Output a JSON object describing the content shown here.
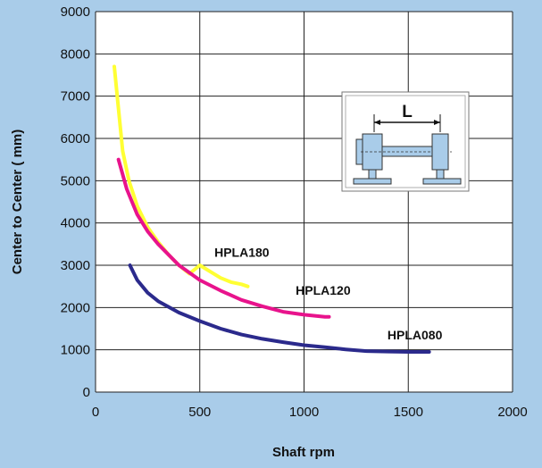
{
  "chart_data": {
    "type": "line",
    "title": "",
    "xlabel": "Shaft rpm",
    "ylabel": "Center to Center ( mm)",
    "xlim": [
      0,
      2000
    ],
    "ylim": [
      0,
      9000
    ],
    "xticks": [
      0,
      500,
      1000,
      1500,
      2000
    ],
    "yticks": [
      0,
      1000,
      2000,
      3000,
      4000,
      5000,
      6000,
      7000,
      8000,
      9000
    ],
    "grid": true,
    "series": [
      {
        "name": "HPLA180",
        "color": "#ffff33",
        "x": [
          90,
          110,
          130,
          160,
          200,
          250,
          300,
          350,
          400,
          450,
          500,
          550,
          600,
          650,
          700,
          730
        ],
        "y": [
          7700,
          6700,
          5700,
          5000,
          4400,
          3900,
          3550,
          3250,
          3000,
          2800,
          3000,
          2850,
          2700,
          2600,
          2550,
          2500
        ]
      },
      {
        "name": "HPLA120",
        "color": "#e8138c",
        "x": [
          110,
          150,
          200,
          250,
          300,
          400,
          500,
          600,
          700,
          800,
          900,
          1000,
          1100,
          1120
        ],
        "y": [
          5500,
          4800,
          4200,
          3800,
          3500,
          3000,
          2650,
          2400,
          2180,
          2030,
          1900,
          1830,
          1780,
          1780
        ]
      },
      {
        "name": "HPLA080",
        "color": "#2b2a8c",
        "x": [
          165,
          200,
          250,
          300,
          400,
          500,
          600,
          700,
          800,
          900,
          1000,
          1100,
          1200,
          1300,
          1400,
          1500,
          1600
        ],
        "y": [
          3000,
          2650,
          2350,
          2150,
          1880,
          1680,
          1500,
          1360,
          1260,
          1180,
          1110,
          1060,
          1010,
          970,
          960,
          950,
          950
        ]
      }
    ],
    "annotations": [
      {
        "text": "HPLA180",
        "x": 570,
        "y": 3200
      },
      {
        "text": "HPLA120",
        "x": 960,
        "y": 2300
      },
      {
        "text": "HPLA080",
        "x": 1400,
        "y": 1250
      }
    ],
    "inset": {
      "label": "L"
    }
  }
}
